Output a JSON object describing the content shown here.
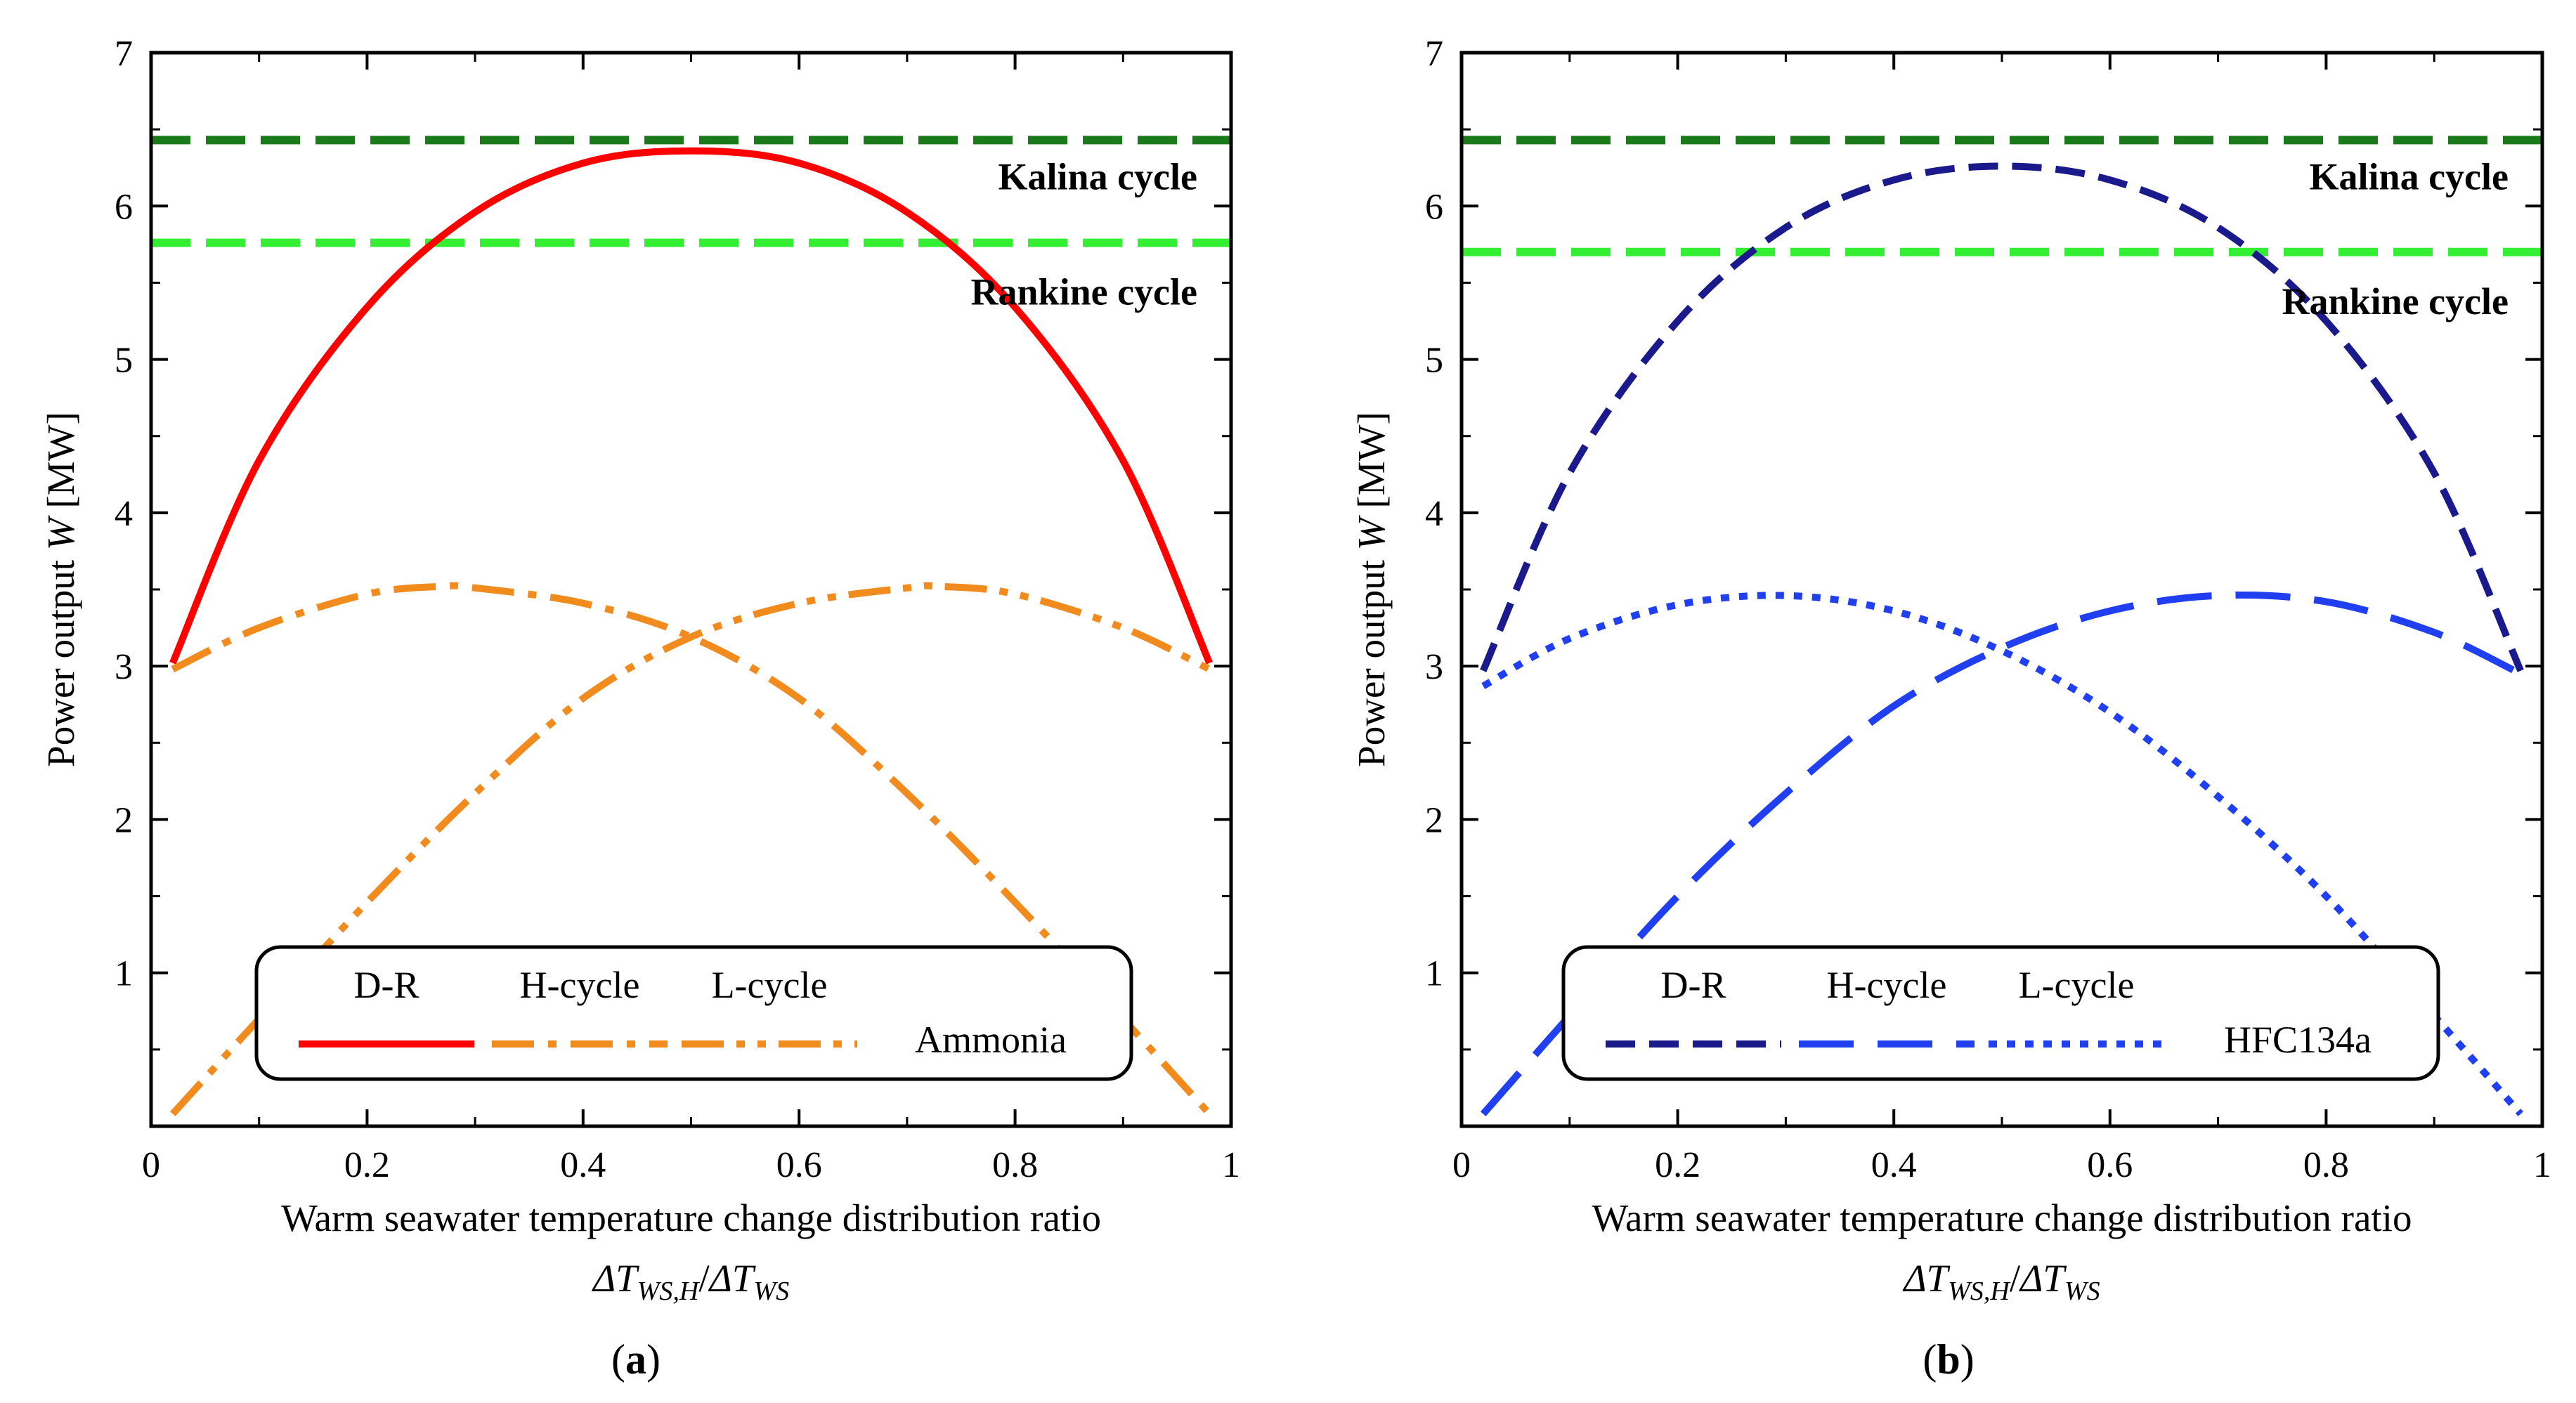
{
  "chart_data": [
    {
      "type": "line",
      "caption": "(a)",
      "caption_open": "(",
      "caption_letter": "a",
      "caption_close": ")",
      "xlabel": "Warm seawater temperature change distribution ratio",
      "xlabel2": {
        "delta1": "ΔT",
        "sub1": "WS,H",
        "slash": "/",
        "delta2": "ΔT",
        "sub2": "WS"
      },
      "ylabel": {
        "prefix": "Power output ",
        "var": "W",
        "unit": " [MW]"
      },
      "xlim": [
        0,
        1
      ],
      "ylim": [
        0,
        7
      ],
      "xticks": [
        0,
        0.2,
        0.4,
        0.6,
        0.8,
        1
      ],
      "xtick_labels": [
        "0",
        "0.2",
        "0.4",
        "0.6",
        "0.8",
        "1"
      ],
      "yticks": [
        1,
        2,
        3,
        4,
        5,
        6,
        7
      ],
      "ytick_labels": [
        "1",
        "2",
        "3",
        "4",
        "5",
        "6",
        "7"
      ],
      "reference_lines": [
        {
          "name": "Kalina cycle",
          "value": 6.43,
          "color": "#1a7a1a"
        },
        {
          "name": "Rankine cycle",
          "value": 5.76,
          "color": "#33ee33"
        }
      ],
      "series": [
        {
          "name": "D-R",
          "style": "solid",
          "color": "#ff0000",
          "x": [
            0.02,
            0.1,
            0.2,
            0.3,
            0.4,
            0.5,
            0.6,
            0.7,
            0.8,
            0.9,
            0.98
          ],
          "values": [
            3.02,
            4.34,
            5.34,
            5.96,
            6.28,
            6.36,
            6.28,
            5.96,
            5.34,
            4.34,
            3.02
          ]
        },
        {
          "name": "H-cycle",
          "style": "dashdot",
          "color": "#f28b1e",
          "x": [
            0.02,
            0.1,
            0.2,
            0.27,
            0.3,
            0.4,
            0.5,
            0.6,
            0.7,
            0.8,
            0.9,
            0.98
          ],
          "values": [
            2.98,
            3.25,
            3.47,
            3.52,
            3.51,
            3.41,
            3.19,
            2.79,
            2.17,
            1.46,
            0.7,
            0.08
          ]
        },
        {
          "name": "L-cycle",
          "style": "dashdotdot",
          "color": "#f28b1e",
          "x": [
            0.02,
            0.1,
            0.2,
            0.3,
            0.4,
            0.5,
            0.6,
            0.7,
            0.73,
            0.8,
            0.9,
            0.98
          ],
          "values": [
            0.08,
            0.7,
            1.46,
            2.17,
            2.79,
            3.19,
            3.41,
            3.51,
            3.52,
            3.47,
            3.25,
            2.98
          ]
        }
      ],
      "legend": {
        "labels": [
          "D-R",
          "H-cycle",
          "L-cycle"
        ],
        "fluid": "Ammonia",
        "position": "bottom-center"
      }
    },
    {
      "type": "line",
      "caption": "(b)",
      "caption_open": "(",
      "caption_letter": "b",
      "caption_close": ")",
      "xlabel": "Warm seawater temperature change distribution ratio",
      "xlabel2": {
        "delta1": "ΔT",
        "sub1": "WS,H",
        "slash": "/",
        "delta2": "ΔT",
        "sub2": "WS"
      },
      "ylabel": {
        "prefix": "Power output ",
        "var": "W",
        "unit": " [MW]"
      },
      "xlim": [
        0,
        1
      ],
      "ylim": [
        0,
        7
      ],
      "xticks": [
        0,
        0.2,
        0.4,
        0.6,
        0.8,
        1
      ],
      "xtick_labels": [
        "0",
        "0.2",
        "0.4",
        "0.6",
        "0.8",
        "1"
      ],
      "yticks": [
        1,
        2,
        3,
        4,
        5,
        6,
        7
      ],
      "ytick_labels": [
        "1",
        "2",
        "3",
        "4",
        "5",
        "6",
        "7"
      ],
      "reference_lines": [
        {
          "name": "Kalina cycle",
          "value": 6.43,
          "color": "#1a7a1a"
        },
        {
          "name": "Rankine cycle",
          "value": 5.7,
          "color": "#33ee33"
        }
      ],
      "series": [
        {
          "name": "D-R",
          "style": "dashed",
          "color": "#1a1a8c",
          "x": [
            0.02,
            0.1,
            0.2,
            0.3,
            0.4,
            0.5,
            0.6,
            0.7,
            0.8,
            0.9,
            0.98
          ],
          "values": [
            2.97,
            4.26,
            5.25,
            5.86,
            6.17,
            6.26,
            6.17,
            5.86,
            5.25,
            4.26,
            2.97
          ]
        },
        {
          "name": "H-cycle",
          "style": "longdash",
          "color": "#1f3ff0",
          "x": [
            0.02,
            0.1,
            0.2,
            0.3,
            0.4,
            0.5,
            0.6,
            0.7,
            0.8,
            0.9,
            0.98
          ],
          "values": [
            0.08,
            0.72,
            1.5,
            2.17,
            2.74,
            3.12,
            3.36,
            3.46,
            3.42,
            3.22,
            2.95
          ]
        },
        {
          "name": "L-cycle",
          "style": "dotted",
          "color": "#1f3ff0",
          "x": [
            0.02,
            0.1,
            0.2,
            0.3,
            0.4,
            0.5,
            0.6,
            0.7,
            0.8,
            0.9,
            0.98
          ],
          "values": [
            2.87,
            3.18,
            3.4,
            3.46,
            3.36,
            3.1,
            2.7,
            2.15,
            1.5,
            0.72,
            0.08
          ]
        }
      ],
      "legend": {
        "labels": [
          "D-R",
          "H-cycle",
          "L-cycle"
        ],
        "fluid": "HFC134a",
        "position": "bottom-center"
      }
    }
  ]
}
